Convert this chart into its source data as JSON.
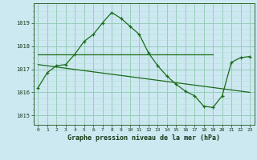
{
  "title": "Graphe pression niveau de la mer (hPa)",
  "bg_color": "#cce8f0",
  "grid_color_major": "#99ccbb",
  "grid_color_minor": "#bbddd4",
  "line_color": "#1a6b1a",
  "xlim": [
    -0.5,
    23.5
  ],
  "ylim": [
    1014.6,
    1019.85
  ],
  "yticks": [
    1015,
    1016,
    1017,
    1018,
    1019
  ],
  "xticks": [
    0,
    1,
    2,
    3,
    4,
    5,
    6,
    7,
    8,
    9,
    10,
    11,
    12,
    13,
    14,
    15,
    16,
    17,
    18,
    19,
    20,
    21,
    22,
    23
  ],
  "series1": [
    1016.2,
    1016.85,
    1017.15,
    1017.2,
    1017.65,
    1018.2,
    1018.5,
    1019.0,
    1019.45,
    1019.2,
    1018.85,
    1018.5,
    1017.7,
    1017.15,
    1016.7,
    1016.35,
    1016.05,
    1015.85,
    1015.4,
    1015.35,
    1015.85,
    1017.3,
    1017.5,
    1017.55
  ],
  "series2_x": [
    0,
    19
  ],
  "series2_y": [
    1017.65,
    1017.65
  ],
  "series3_x": [
    0,
    23
  ],
  "series3_y": [
    1017.2,
    1016.0
  ]
}
